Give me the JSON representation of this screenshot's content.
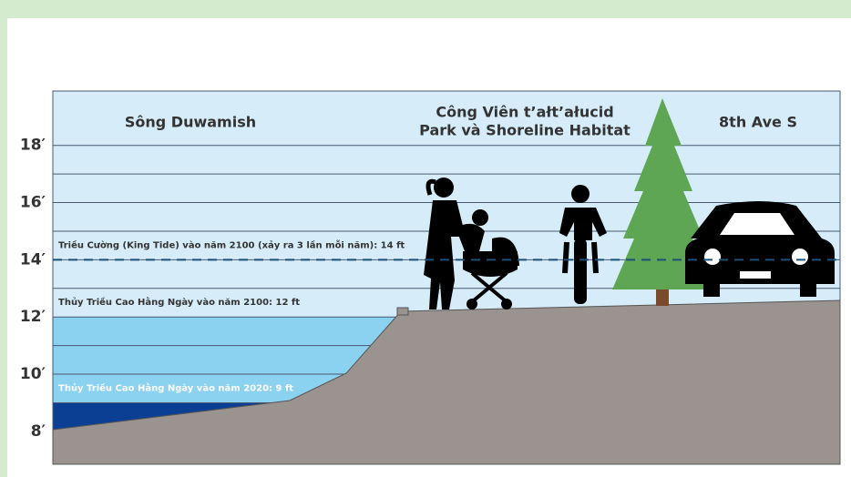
{
  "regions": [
    "Sông Duwamish",
    [
      "Công Viên t’ałt’ałucid",
      "Park và Shoreline Habitat"
    ],
    "8th Ave S"
  ],
  "chart_data": {
    "type": "elevation",
    "ylim": [
      6.85,
      19.9
    ],
    "yticks": [
      {
        "value": 8,
        "label": "8′"
      },
      {
        "value": 10,
        "label": "10′"
      },
      {
        "value": 12,
        "label": "12′"
      },
      {
        "value": 14,
        "label": "14′"
      },
      {
        "value": 16,
        "label": "16′"
      },
      {
        "value": 18,
        "label": "18′"
      }
    ],
    "levels": [
      {
        "label": "Thủy Triều Cao Hằng Ngày vào năm 2020: 9 ft",
        "value": 9,
        "color": "#0b3f94"
      },
      {
        "label": "Thủy Triều Cao Hằng Ngày vào năm 2100: 12 ft",
        "value": 12,
        "color": "#8ad2f0"
      },
      {
        "label": "Triều Cường (King Tide) vào năm 2100 (xảy ra 3 lần mỗi năm): 14 ft",
        "value": 14,
        "color": "#1d4f78"
      }
    ]
  }
}
